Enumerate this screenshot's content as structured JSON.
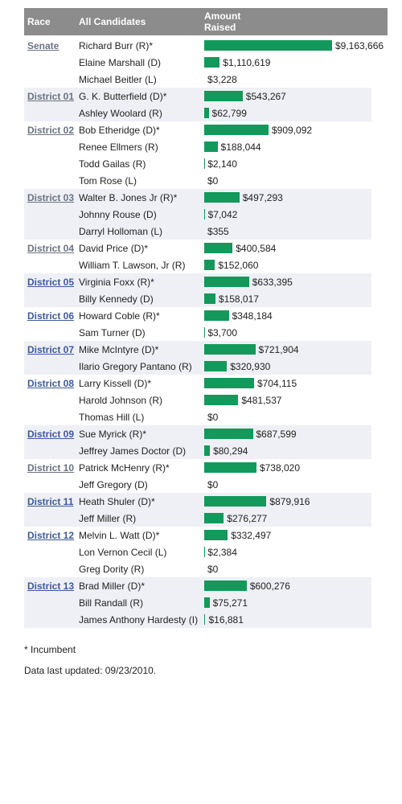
{
  "header": {
    "race": "Race",
    "candidates": "All Candidates",
    "amount": "Amount Raised"
  },
  "groups": [
    {
      "race": "Senate",
      "candidates": [
        {
          "name": "Richard Burr (R)*",
          "amount": 9163666,
          "amount_label": "$9,163,666"
        },
        {
          "name": "Elaine Marshall (D)",
          "amount": 1110619,
          "amount_label": "$1,110,619"
        },
        {
          "name": "Michael Beitler (L)",
          "amount": 3228,
          "amount_label": "$3,228"
        }
      ]
    },
    {
      "race": "District 01",
      "candidates": [
        {
          "name": "G. K. Butterfield (D)*",
          "amount": 543267,
          "amount_label": "$543,267"
        },
        {
          "name": "Ashley Woolard (R)",
          "amount": 62799,
          "amount_label": "$62,799"
        }
      ]
    },
    {
      "race": "District 02",
      "candidates": [
        {
          "name": "Bob Etheridge (D)*",
          "amount": 909092,
          "amount_label": "$909,092"
        },
        {
          "name": "Renee Ellmers (R)",
          "amount": 188044,
          "amount_label": "$188,044"
        },
        {
          "name": "Todd Gailas (R)",
          "amount": 2140,
          "amount_label": "$2,140"
        },
        {
          "name": "Tom Rose (L)",
          "amount": 0,
          "amount_label": "$0"
        }
      ]
    },
    {
      "race": "District 03",
      "candidates": [
        {
          "name": "Walter B. Jones Jr (R)*",
          "amount": 497293,
          "amount_label": "$497,293"
        },
        {
          "name": "Johnny Rouse (D)",
          "amount": 7042,
          "amount_label": "$7,042"
        },
        {
          "name": "Darryl Holloman (L)",
          "amount": 355,
          "amount_label": "$355"
        }
      ]
    },
    {
      "race": "District 04",
      "candidates": [
        {
          "name": "David Price (D)*",
          "amount": 400584,
          "amount_label": "$400,584"
        },
        {
          "name": "William T. Lawson, Jr (R)",
          "amount": 152060,
          "amount_label": "$152,060"
        }
      ]
    },
    {
      "race": "District 05",
      "candidates": [
        {
          "name": "Virginia Foxx (R)*",
          "amount": 633395,
          "amount_label": "$633,395"
        },
        {
          "name": "Billy Kennedy (D)",
          "amount": 158017,
          "amount_label": "$158,017"
        }
      ]
    },
    {
      "race": "District 06",
      "candidates": [
        {
          "name": "Howard Coble (R)*",
          "amount": 348184,
          "amount_label": "$348,184"
        },
        {
          "name": "Sam Turner (D)",
          "amount": 3700,
          "amount_label": "$3,700"
        }
      ]
    },
    {
      "race": "District 07",
      "candidates": [
        {
          "name": "Mike McIntyre (D)*",
          "amount": 721904,
          "amount_label": "$721,904"
        },
        {
          "name": "Ilario Gregory Pantano (R)",
          "amount": 320930,
          "amount_label": "$320,930"
        }
      ]
    },
    {
      "race": "District 08",
      "candidates": [
        {
          "name": "Larry Kissell (D)*",
          "amount": 704115,
          "amount_label": "$704,115"
        },
        {
          "name": "Harold Johnson (R)",
          "amount": 481537,
          "amount_label": "$481,537"
        },
        {
          "name": "Thomas Hill (L)",
          "amount": 0,
          "amount_label": "$0"
        }
      ]
    },
    {
      "race": "District 09",
      "candidates": [
        {
          "name": "Sue Myrick (R)*",
          "amount": 687599,
          "amount_label": "$687,599"
        },
        {
          "name": "Jeffrey James Doctor (D)",
          "amount": 80294,
          "amount_label": "$80,294"
        }
      ]
    },
    {
      "race": "District 10",
      "candidates": [
        {
          "name": "Patrick McHenry (R)*",
          "amount": 738020,
          "amount_label": "$738,020"
        },
        {
          "name": "Jeff Gregory (D)",
          "amount": 0,
          "amount_label": "$0"
        }
      ]
    },
    {
      "race": "District 11",
      "candidates": [
        {
          "name": "Heath Shuler (D)*",
          "amount": 879916,
          "amount_label": "$879,916"
        },
        {
          "name": "Jeff Miller (R)",
          "amount": 276277,
          "amount_label": "$276,277"
        }
      ]
    },
    {
      "race": "District 12",
      "candidates": [
        {
          "name": "Melvin L. Watt (D)*",
          "amount": 332497,
          "amount_label": "$332,497"
        },
        {
          "name": "Lon Vernon Cecil (L)",
          "amount": 2384,
          "amount_label": "$2,384"
        },
        {
          "name": "Greg Dority (R)",
          "amount": 0,
          "amount_label": "$0"
        }
      ]
    },
    {
      "race": "District 13",
      "candidates": [
        {
          "name": "Brad Miller (D)*",
          "amount": 600276,
          "amount_label": "$600,276"
        },
        {
          "name": "Bill Randall (R)",
          "amount": 75271,
          "amount_label": "$75,271"
        },
        {
          "name": "James Anthony Hardesty (I)",
          "amount": 16881,
          "amount_label": "$16,881"
        }
      ]
    }
  ],
  "footer": {
    "note": "* Incumbent",
    "updated": "Data last updated: 09/23/2010."
  }
}
